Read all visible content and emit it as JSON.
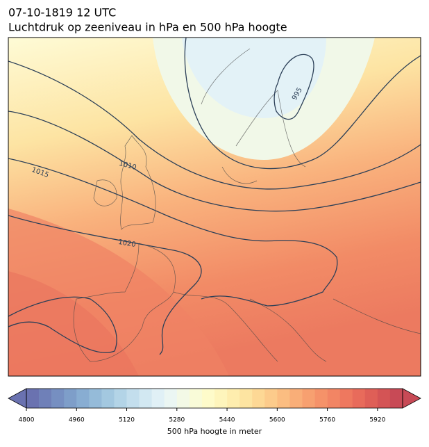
{
  "header": {
    "title": "07-10-1819 12 UTC",
    "subtitle": "Luchtdruk op zeeniveau in hPa en 500 hPa hoogte"
  },
  "map": {
    "contour_labels": [
      995,
      1010,
      1015,
      1020
    ]
  },
  "colorbar": {
    "label": "500 hPa hoogte in meter",
    "levels": [
      4800,
      4840,
      4880,
      4920,
      4960,
      5000,
      5040,
      5080,
      5120,
      5160,
      5200,
      5240,
      5280,
      5320,
      5360,
      5400,
      5440,
      5480,
      5520,
      5560,
      5600,
      5640,
      5680,
      5720,
      5760,
      5800,
      5840,
      5880,
      5920,
      5960,
      6000
    ],
    "colors": [
      "#6a72b0",
      "#6f80b8",
      "#768fc1",
      "#7e9ec9",
      "#88add2",
      "#95bbd9",
      "#a3c8e0",
      "#b3d4e7",
      "#c3deed",
      "#d2e8f2",
      "#e0f0f6",
      "#ebf6f3",
      "#f3f9e6",
      "#f9fbd8",
      "#fefbca",
      "#fef5bc",
      "#feedae",
      "#fde4a1",
      "#fdd895",
      "#fccb8b",
      "#fbbd81",
      "#f9ae78",
      "#f7a070",
      "#f59269",
      "#f28564",
      "#ee785f",
      "#e86b5b",
      "#df5f57",
      "#d45455",
      "#c84a56"
    ],
    "ticks": [
      4800,
      4960,
      5120,
      5280,
      5440,
      5600,
      5760,
      5920
    ]
  }
}
